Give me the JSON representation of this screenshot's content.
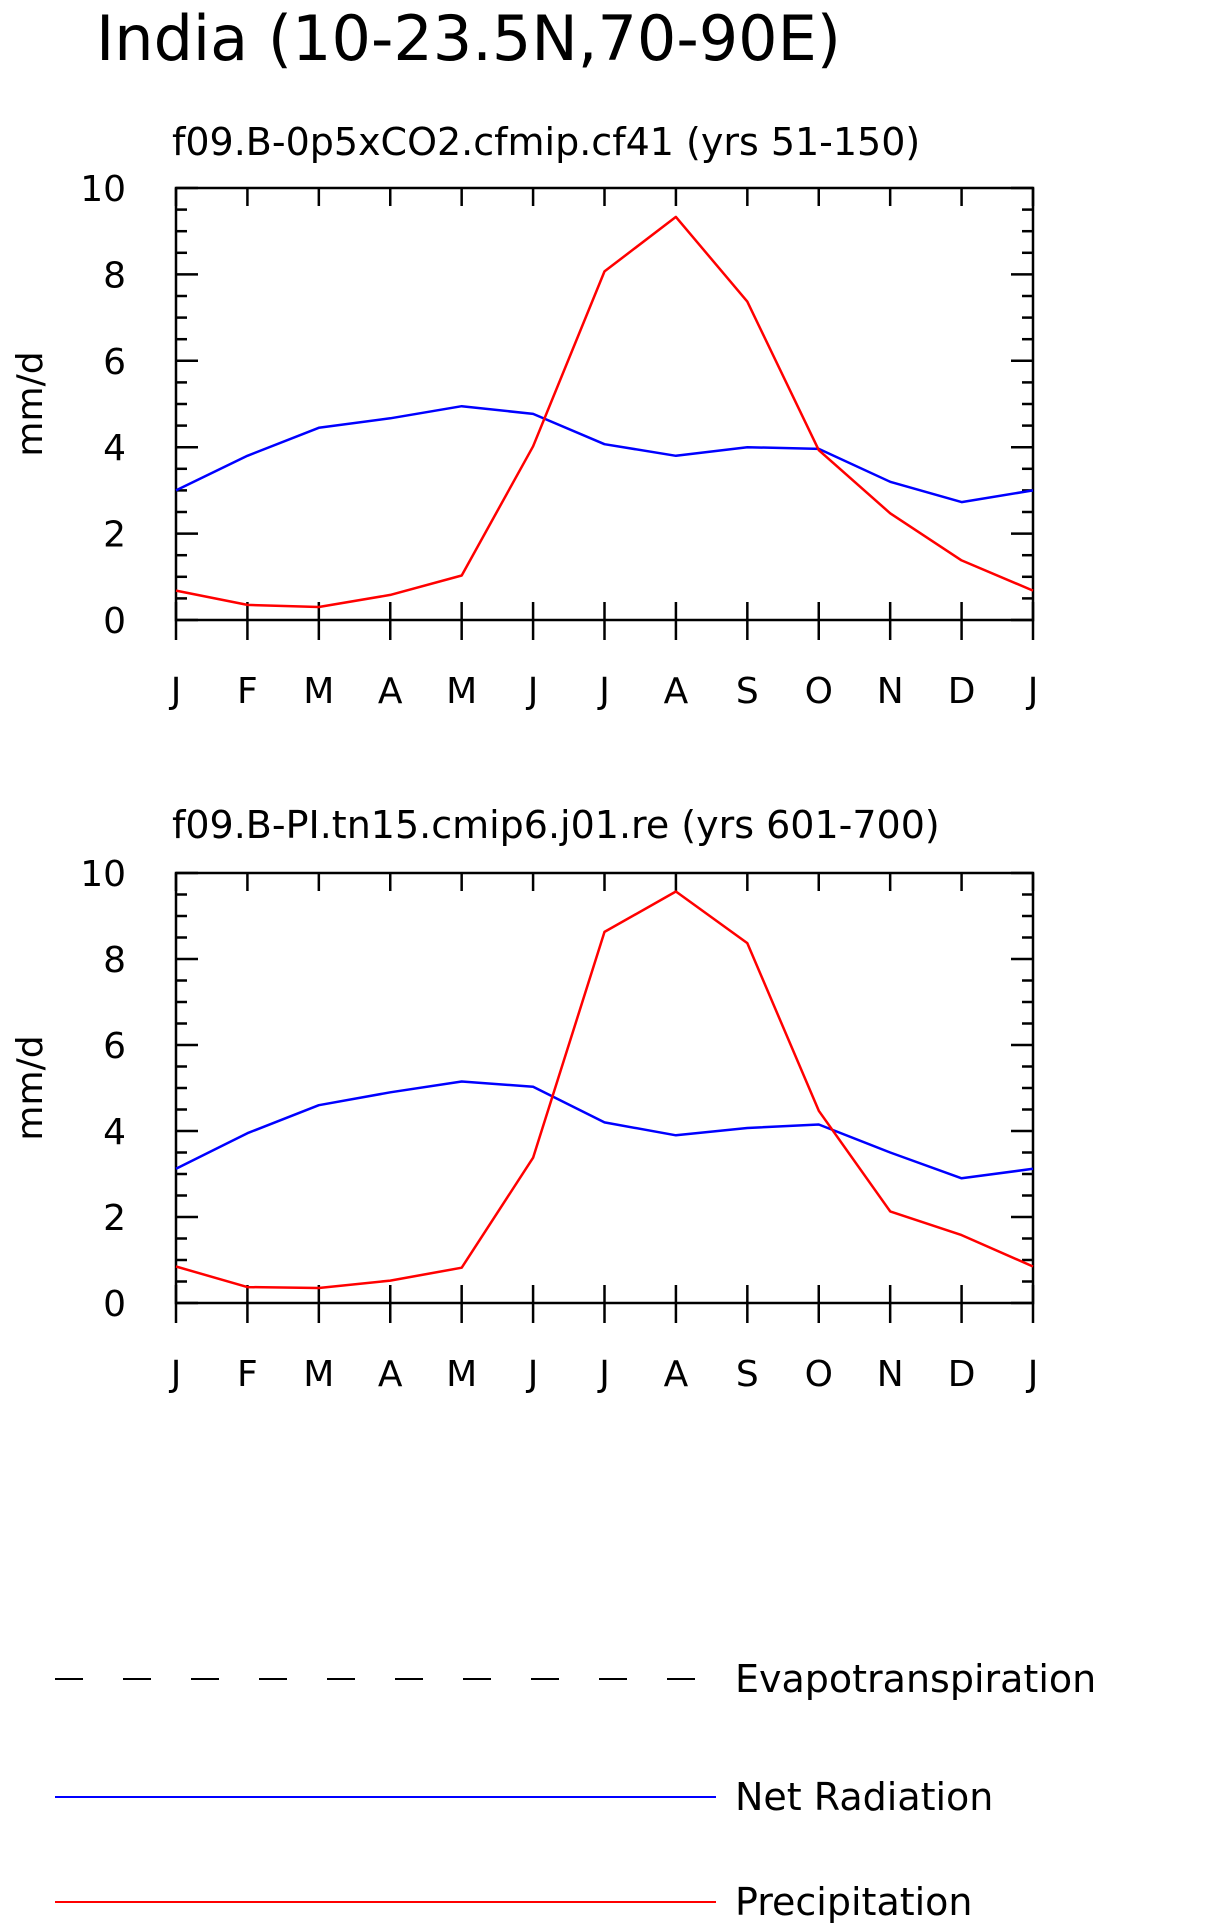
{
  "title": "India (10-23.5N,70-90E)",
  "colors": {
    "net_radiation": "#0000ff",
    "precipitation": "#ff0000",
    "evapotranspiration": "#000000",
    "axes": "#000000"
  },
  "legend": {
    "placement": "bottom",
    "entries": [
      {
        "name": "Evapotranspiration",
        "style": "dashed",
        "color": "#000000"
      },
      {
        "name": "Net Radiation",
        "style": "solid",
        "color": "#0000ff"
      },
      {
        "name": "Precipitation",
        "style": "solid",
        "color": "#ff0000"
      }
    ]
  },
  "chart_data": [
    {
      "type": "line",
      "title": "f09.B-0p5xCO2.cfmip.cf41 (yrs 51-150)",
      "xlabel": "",
      "ylabel": "mm/d",
      "categories": [
        "J",
        "F",
        "M",
        "A",
        "M",
        "J",
        "J",
        "A",
        "S",
        "O",
        "N",
        "D",
        "J"
      ],
      "ylim": [
        0,
        10
      ],
      "yticks": [
        0,
        2,
        4,
        6,
        8,
        10
      ],
      "grid": false,
      "series": [
        {
          "name": "Net Radiation",
          "color": "#0000ff",
          "values": [
            3.0,
            3.8,
            4.45,
            4.67,
            4.95,
            4.77,
            4.07,
            3.8,
            4.0,
            3.96,
            3.2,
            2.73,
            3.0
          ]
        },
        {
          "name": "Precipitation",
          "color": "#ff0000",
          "values": [
            0.68,
            0.35,
            0.3,
            0.58,
            1.03,
            4.02,
            8.07,
            9.33,
            7.37,
            3.93,
            2.47,
            1.38,
            0.68
          ]
        }
      ]
    },
    {
      "type": "line",
      "title": "f09.B-PI.tn15.cmip6.j01.re (yrs 601-700)",
      "xlabel": "",
      "ylabel": "mm/d",
      "categories": [
        "J",
        "F",
        "M",
        "A",
        "M",
        "J",
        "J",
        "A",
        "S",
        "O",
        "N",
        "D",
        "J"
      ],
      "ylim": [
        0,
        10
      ],
      "yticks": [
        0,
        2,
        4,
        6,
        8,
        10
      ],
      "grid": false,
      "series": [
        {
          "name": "Net Radiation",
          "color": "#0000ff",
          "values": [
            3.12,
            3.95,
            4.6,
            4.9,
            5.15,
            5.03,
            4.2,
            3.9,
            4.07,
            4.15,
            3.5,
            2.9,
            3.12
          ]
        },
        {
          "name": "Precipitation",
          "color": "#ff0000",
          "values": [
            0.85,
            0.37,
            0.35,
            0.52,
            0.82,
            3.38,
            8.63,
            9.57,
            8.37,
            4.47,
            2.13,
            1.58,
            0.85
          ]
        }
      ]
    }
  ]
}
